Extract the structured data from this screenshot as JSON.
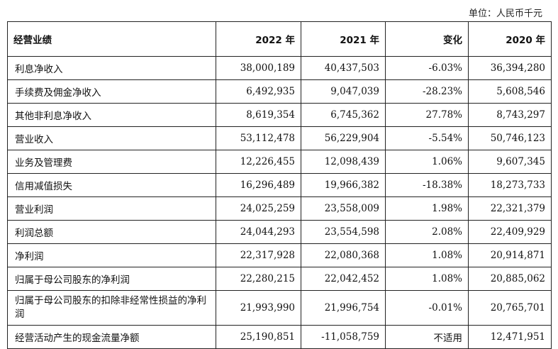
{
  "unit_note": "单位：人民币千元",
  "header": {
    "label": "经营业绩",
    "col_2022": "2022 年",
    "col_2021": "2021 年",
    "col_change": "变化",
    "col_2020": "2020 年"
  },
  "rows": [
    {
      "label": "利息净收入",
      "y2022": "38,000,189",
      "y2021": "40,437,503",
      "change": "-6.03%",
      "y2020": "36,394,280"
    },
    {
      "label": "手续费及佣金净收入",
      "y2022": "6,492,935",
      "y2021": "9,047,039",
      "change": "-28.23%",
      "y2020": "5,608,546"
    },
    {
      "label": "其他非利息净收入",
      "y2022": "8,619,354",
      "y2021": "6,745,362",
      "change": "27.78%",
      "y2020": "8,743,297"
    },
    {
      "label": "营业收入",
      "y2022": "53,112,478",
      "y2021": "56,229,904",
      "change": "-5.54%",
      "y2020": "50,746,123"
    },
    {
      "label": "业务及管理费",
      "y2022": "12,226,455",
      "y2021": "12,098,439",
      "change": "1.06%",
      "y2020": "9,607,345"
    },
    {
      "label": "信用减值损失",
      "y2022": "16,296,489",
      "y2021": "19,966,382",
      "change": "-18.38%",
      "y2020": "18,273,733"
    },
    {
      "label": "营业利润",
      "y2022": "24,025,259",
      "y2021": "23,558,009",
      "change": "1.98%",
      "y2020": "22,321,379"
    },
    {
      "label": "利润总额",
      "y2022": "24,044,293",
      "y2021": "23,554,598",
      "change": "2.08%",
      "y2020": "22,409,929"
    },
    {
      "label": "净利润",
      "y2022": "22,317,928",
      "y2021": "22,080,368",
      "change": "1.08%",
      "y2020": "20,914,871"
    },
    {
      "label": "归属于母公司股东的净利润",
      "y2022": "22,280,215",
      "y2021": "22,042,452",
      "change": "1.08%",
      "y2020": "20,885,062"
    },
    {
      "label": "归属于母公司股东的扣除非经常性损益的净利润",
      "y2022": "21,993,990",
      "y2021": "21,996,754",
      "change": "-0.01%",
      "y2020": "20,765,701"
    },
    {
      "label": "经营活动产生的现金流量净额",
      "y2022": "25,190,851",
      "y2021": "-11,058,759",
      "change": "不适用",
      "y2020": "12,471,951"
    }
  ]
}
